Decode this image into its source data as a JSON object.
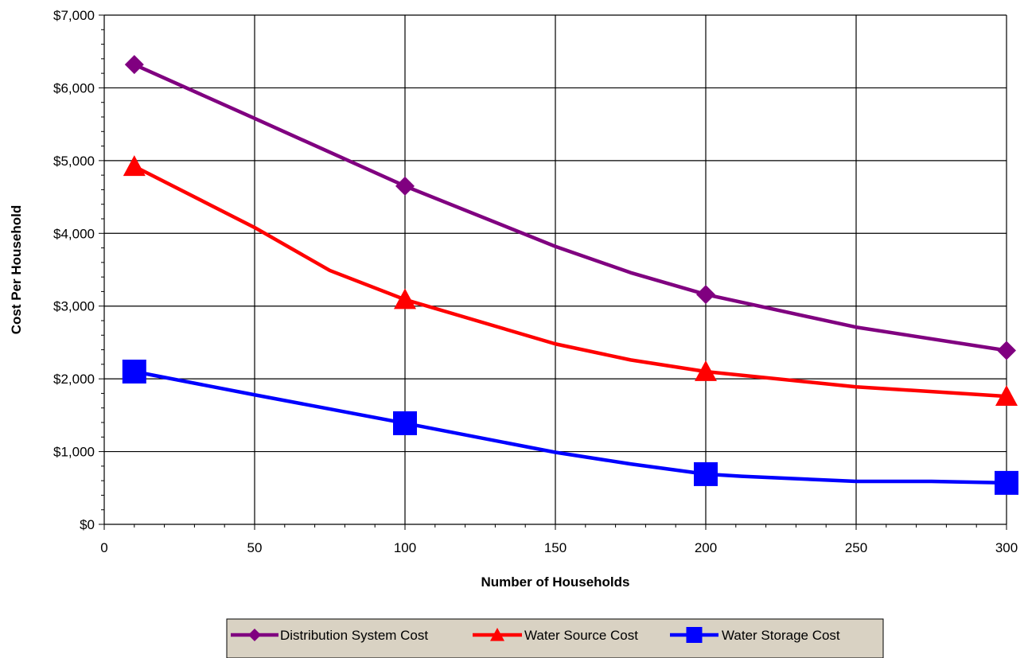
{
  "chart_data": {
    "type": "line",
    "title": "",
    "xlabel": "Number of Households",
    "ylabel": "Cost Per Household",
    "xlim": [
      0,
      300
    ],
    "ylim": [
      0,
      7000
    ],
    "xticks": [
      0,
      50,
      100,
      150,
      200,
      250,
      300
    ],
    "xtick_labels": [
      "0",
      "50",
      "100",
      "150",
      "200",
      "250",
      "300"
    ],
    "yticks": [
      0,
      1000,
      2000,
      3000,
      4000,
      5000,
      6000,
      7000
    ],
    "ytick_labels": [
      "$0",
      "$1,000",
      "$2,000",
      "$3,000",
      "$4,000",
      "$5,000",
      "$6,000",
      "$7,000"
    ],
    "grid": true,
    "legend_position": "bottom",
    "series": [
      {
        "name": "Distribution System Cost",
        "color": "#800080",
        "marker": "diamond",
        "x": [
          10,
          100,
          200,
          300
        ],
        "y": [
          6320,
          4650,
          3160,
          2390
        ],
        "curve_x": [
          10,
          50,
          100,
          150,
          175,
          200,
          250,
          300
        ],
        "curve_y": [
          6320,
          5580,
          4650,
          3820,
          3460,
          3160,
          2710,
          2390
        ]
      },
      {
        "name": "Water Source Cost",
        "color": "#ff0000",
        "marker": "triangle",
        "x": [
          10,
          100,
          200,
          300
        ],
        "y": [
          4920,
          3090,
          2100,
          1760
        ],
        "curve_x": [
          10,
          50,
          75,
          100,
          150,
          175,
          200,
          250,
          300
        ],
        "curve_y": [
          4920,
          4080,
          3490,
          3090,
          2480,
          2260,
          2100,
          1890,
          1760
        ]
      },
      {
        "name": "Water Storage Cost",
        "color": "#0000ff",
        "marker": "square",
        "x": [
          10,
          100,
          200,
          300
        ],
        "y": [
          2100,
          1390,
          690,
          570
        ],
        "curve_x": [
          10,
          50,
          100,
          150,
          175,
          200,
          212,
          250,
          275,
          300
        ],
        "curve_y": [
          2100,
          1780,
          1390,
          990,
          830,
          690,
          660,
          590,
          590,
          570
        ]
      }
    ]
  }
}
